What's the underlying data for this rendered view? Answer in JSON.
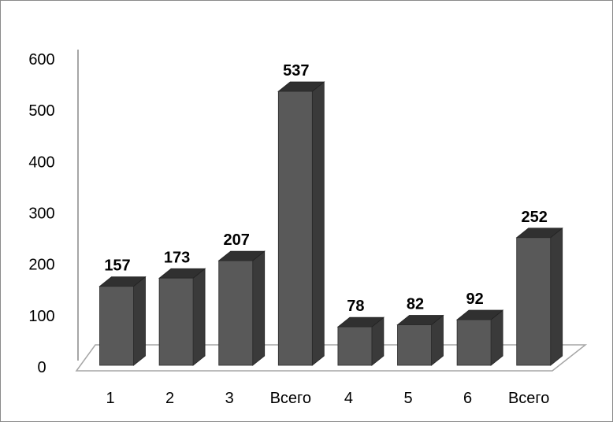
{
  "chart_data": {
    "type": "bar",
    "title": "",
    "xlabel": "",
    "ylabel": "",
    "categories": [
      "1",
      "2",
      "3",
      "Всего",
      "4",
      "5",
      "6",
      "Всего"
    ],
    "values": [
      157,
      173,
      207,
      537,
      78,
      82,
      92,
      252
    ],
    "data_labels": [
      "157",
      "173",
      "207",
      "537",
      "78",
      "82",
      "92",
      "252"
    ],
    "ylim": [
      0,
      600
    ],
    "y_ticks": [
      0,
      100,
      200,
      300,
      400,
      500,
      600
    ],
    "y_tick_labels": [
      "0",
      "100",
      "200",
      "300",
      "400",
      "500",
      "600"
    ],
    "grid": false,
    "legend": "none",
    "style": "3d-column",
    "colors": {
      "bar_front": "#595959",
      "bar_side": "#3a3a3a",
      "bar_top": "#303030",
      "axis": "#a6a6a6",
      "border": "#8a8a8a"
    }
  }
}
